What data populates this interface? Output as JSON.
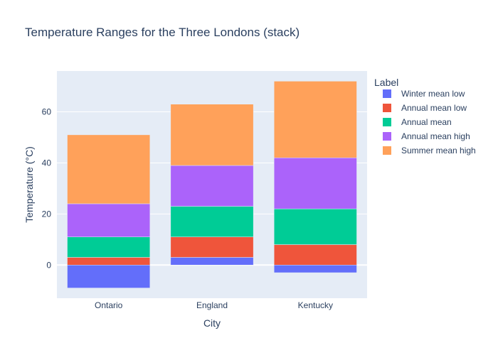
{
  "chart_data": {
    "type": "bar",
    "barmode": "stack",
    "title": "Temperature Ranges for the Three Londons (stack)",
    "xlabel": "City",
    "ylabel": "Temperature (°C)",
    "categories": [
      "Ontario",
      "England",
      "Kentucky"
    ],
    "ylim": [
      -13,
      76
    ],
    "yticks": [
      0,
      20,
      40,
      60
    ],
    "grid": true,
    "legend": {
      "title": "Label",
      "placement": "right"
    },
    "series": [
      {
        "name": "Winter mean low",
        "values": [
          -9,
          3,
          -3
        ],
        "color": "#636efa"
      },
      {
        "name": "Annual mean low",
        "values": [
          3,
          8,
          8
        ],
        "color": "#ef553b"
      },
      {
        "name": "Annual mean",
        "values": [
          8,
          12,
          14
        ],
        "color": "#00cc96"
      },
      {
        "name": "Annual mean high",
        "values": [
          13,
          16,
          20
        ],
        "color": "#ab63fa"
      },
      {
        "name": "Summer mean high",
        "values": [
          27,
          24,
          30
        ],
        "color": "#ffa15a"
      }
    ],
    "colors": {
      "plot_background": "#e5ecf6",
      "gridline": "#ffffff",
      "text": "#2a3f5f"
    }
  }
}
